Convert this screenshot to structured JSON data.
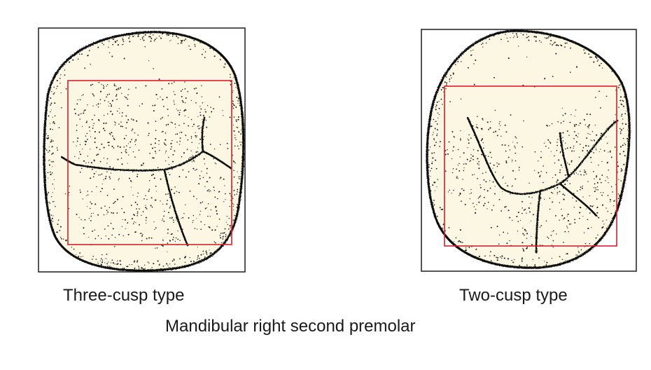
{
  "labels": {
    "left_type": "Three-cusp type",
    "right_type": "Two-cusp type",
    "title": "Mandibular right second premolar"
  },
  "colors": {
    "background": "#ffffff",
    "frame": "#2b2b2b",
    "tooth_fill": "#fbf7e2",
    "stipple": "#1c1c1c",
    "groove": "#111111",
    "highlight_box": "#d81e2a"
  },
  "figures": [
    {
      "id": "three-cusp",
      "cusps": 3
    },
    {
      "id": "two-cusp",
      "cusps": 2
    }
  ]
}
